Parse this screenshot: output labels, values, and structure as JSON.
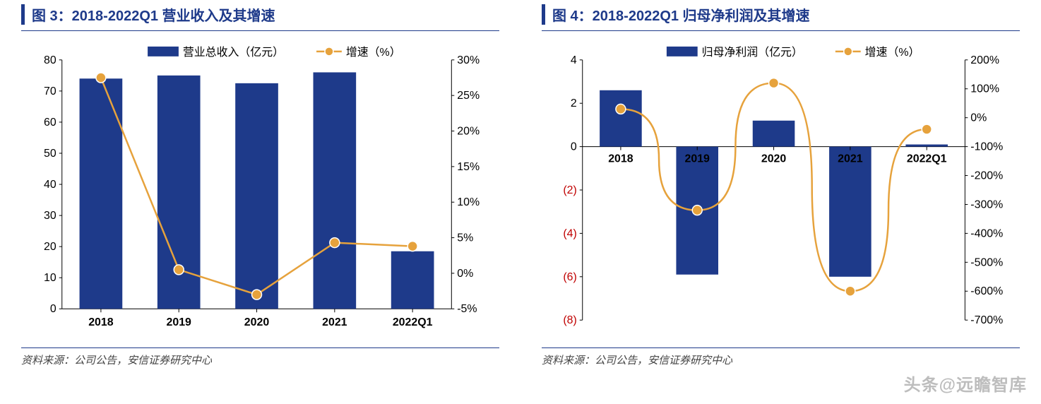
{
  "watermark": "头条@远瞻智库",
  "left_chart": {
    "title": "图 3：2018-2022Q1 营业收入及其增速",
    "source": "资料来源：公司公告，安信证券研究中心",
    "type": "bar+line",
    "categories": [
      "2018",
      "2019",
      "2020",
      "2021",
      "2022Q1"
    ],
    "bar_series": {
      "label": "营业总收入（亿元）",
      "values": [
        74,
        75,
        72.5,
        76,
        18.5
      ],
      "color": "#1e3a8a"
    },
    "line_series": {
      "label": "增速（%）",
      "values": [
        27.5,
        0.5,
        -3.0,
        4.3,
        3.8
      ],
      "color": "#e6a23c",
      "marker_fill": "#e6a23c",
      "marker_stroke": "#ffffff"
    },
    "left_axis": {
      "min": 0,
      "max": 80,
      "step": 10,
      "ticks": [
        "0",
        "10",
        "20",
        "30",
        "40",
        "50",
        "60",
        "70",
        "80"
      ]
    },
    "right_axis": {
      "min": -5,
      "max": 30,
      "step": 5,
      "ticks": [
        "-5%",
        "0%",
        "5%",
        "10%",
        "15%",
        "20%",
        "25%",
        "30%"
      ]
    },
    "legend_swatch_bar": "#1e3a8a",
    "legend_swatch_line": "#e6a23c",
    "axis_font_color": "#000000",
    "axis_font_size": 16,
    "bar_width": 0.55,
    "line_width": 2.5,
    "marker_radius": 7
  },
  "right_chart": {
    "title": "图 4：2018-2022Q1 归母净利润及其增速",
    "source": "资料来源：公司公告，安信证券研究中心",
    "type": "bar+line",
    "categories": [
      "2018",
      "2019",
      "2020",
      "2021",
      "2022Q1"
    ],
    "bar_series": {
      "label": "归母净利润（亿元）",
      "values": [
        2.6,
        -5.9,
        1.2,
        -6.0,
        0.1
      ],
      "color": "#1e3a8a"
    },
    "line_series": {
      "label": "增速（%）",
      "values": [
        30,
        -320,
        120,
        -600,
        -40
      ],
      "color": "#e6a23c",
      "marker_fill": "#e6a23c",
      "marker_stroke": "#ffffff"
    },
    "left_axis": {
      "min": -8,
      "max": 4,
      "step": 2,
      "ticks_pos": [
        "0",
        "2",
        "4"
      ],
      "ticks_neg": [
        "(2)",
        "(4)",
        "(6)",
        "(8)"
      ],
      "neg_color": "#c00000"
    },
    "right_axis": {
      "min": -700,
      "max": 200,
      "step": 100,
      "ticks": [
        "-700%",
        "-600%",
        "-500%",
        "-400%",
        "-300%",
        "-200%",
        "-100%",
        "0%",
        "100%",
        "200%"
      ]
    },
    "legend_swatch_bar": "#1e3a8a",
    "legend_swatch_line": "#e6a23c",
    "axis_font_color": "#000000",
    "axis_font_size": 16,
    "bar_width": 0.55,
    "line_width": 2.5,
    "marker_radius": 7
  }
}
